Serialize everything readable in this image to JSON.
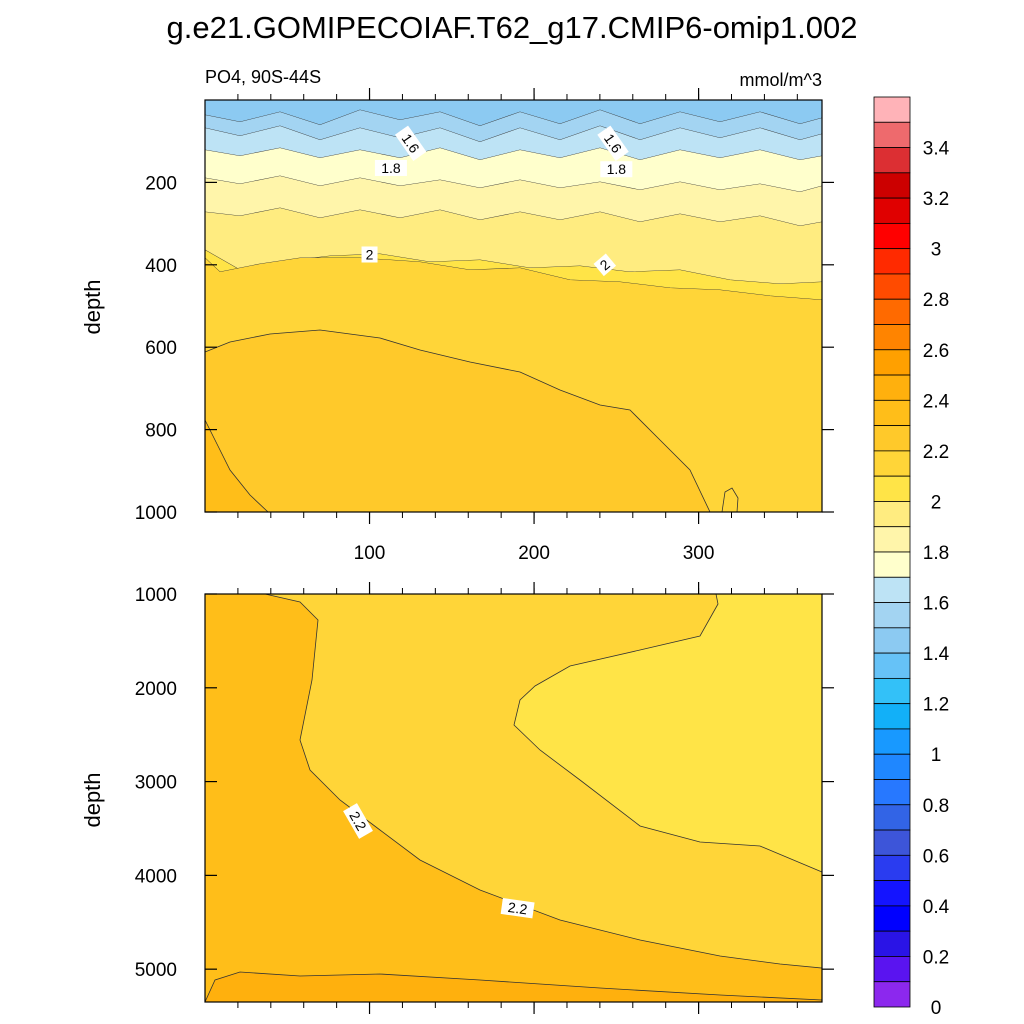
{
  "chart_data": {
    "type": "contour",
    "title": "g.e21.GOMIPECOIAF.T62_g17.CMIP6-omip1.002",
    "left_subtitle": "PO4, 90S-44S",
    "right_subtitle": "mmol/m^3",
    "xlabel": "",
    "ylabel": "depth",
    "xlim": [
      0,
      375
    ],
    "x_ticks": [
      100,
      200,
      300
    ],
    "x_tick_labels": [
      "100",
      "200",
      "300"
    ],
    "panels": [
      {
        "name": "upper",
        "ylim": [
          0,
          1000
        ],
        "y_ticks": [
          200,
          400,
          600,
          800,
          1000
        ],
        "y_tick_labels": [
          "200",
          "400",
          "600",
          "800",
          "1000"
        ],
        "show_x_tick_labels": true,
        "contour_levels": [
          1.2,
          1.3,
          1.4,
          1.5,
          1.6,
          1.7,
          1.8,
          1.9,
          2.0,
          2.1,
          2.2,
          2.3
        ],
        "contour_labels": [
          {
            "text": "1.6",
            "x": 125,
            "depth": 105,
            "angle": 55
          },
          {
            "text": "1.6",
            "x": 248,
            "depth": 105,
            "angle": 55
          },
          {
            "text": "1.8",
            "x": 113,
            "depth": 165,
            "angle": 0
          },
          {
            "text": "1.8",
            "x": 250,
            "depth": 168,
            "angle": 0
          },
          {
            "text": "2",
            "x": 100,
            "depth": 375,
            "angle": 0
          },
          {
            "text": "2",
            "x": 243,
            "depth": 400,
            "angle": -40
          }
        ]
      },
      {
        "name": "lower",
        "ylim": [
          1000,
          5350
        ],
        "y_ticks": [
          1000,
          2000,
          3000,
          4000,
          5000
        ],
        "y_tick_labels": [
          "1000",
          "2000",
          "3000",
          "4000",
          "5000"
        ],
        "show_x_tick_labels": false,
        "contour_levels": [
          2.0,
          2.1,
          2.2,
          2.3
        ],
        "contour_labels": [
          {
            "text": "2.2",
            "x": 93,
            "depth": 3420,
            "angle": 60
          },
          {
            "text": "2.2",
            "x": 190,
            "depth": 4350,
            "angle": 8
          }
        ]
      }
    ],
    "colorbar": {
      "labels": [
        "3.4",
        "3.2",
        "3",
        "2.8",
        "2.6",
        "2.4",
        "2.2",
        "2",
        "1.8",
        "1.6",
        "1.4",
        "1.2",
        "1",
        "0.8",
        "0.6",
        "0.4",
        "0.2",
        "0"
      ],
      "levels_descending": [
        3.6,
        3.5,
        3.4,
        3.3,
        3.2,
        3.1,
        3.0,
        2.9,
        2.8,
        2.7,
        2.6,
        2.5,
        2.4,
        2.3,
        2.2,
        2.1,
        2.0,
        1.9,
        1.8,
        1.7,
        1.6,
        1.5,
        1.4,
        1.3,
        1.2,
        1.1,
        1.0,
        0.9,
        0.8,
        0.7,
        0.6,
        0.5,
        0.4,
        0.3,
        0.2,
        0.1,
        0.0
      ],
      "colors_top_to_bottom": [
        "#ffb3b8",
        "#ee6a6d",
        "#dc2f33",
        "#cc0000",
        "#e00000",
        "#ff0000",
        "#ff2a00",
        "#ff4b00",
        "#ff6a00",
        "#ff8400",
        "#ffa000",
        "#ffb00d",
        "#ffbe19",
        "#ffc92a",
        "#ffd538",
        "#ffe447",
        "#ffec80",
        "#fff5aa",
        "#ffffcc",
        "#bde3f5",
        "#a3d4f2",
        "#8ccaf2",
        "#66c2f7",
        "#33c1f8",
        "#12b0f8",
        "#1899ff",
        "#1f87ff",
        "#2778ff",
        "#3264e6",
        "#3d55d9",
        "#2a3cf0",
        "#1414ff",
        "#0000ff",
        "#2a14e6",
        "#5a14f0",
        "#8c28ee"
      ]
    }
  }
}
